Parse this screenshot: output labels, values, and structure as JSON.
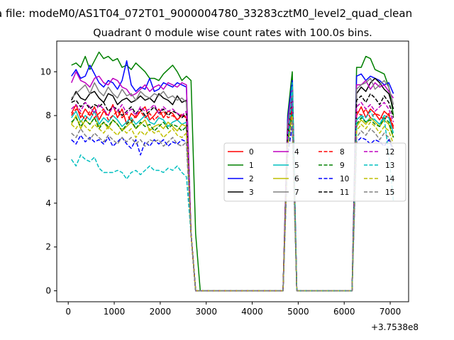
{
  "suptitle": "a file: modeM0/AS1T04_072T01_9000004780_33283cztM0_level2_quad_clean",
  "chart_data": {
    "type": "line",
    "title": "Quadrant 0 module wise count rates with 100.0s bins.",
    "xlabel": "",
    "ylabel": "",
    "x_offset_label": "+3.7538e8",
    "xlim": [
      -250,
      7400
    ],
    "ylim": [
      -0.5,
      11.4
    ],
    "xticks": [
      0,
      1000,
      2000,
      3000,
      4000,
      5000,
      6000,
      7000
    ],
    "yticks": [
      0,
      2,
      4,
      6,
      8,
      10
    ],
    "grid": false,
    "legend_position": "center-right",
    "legend_columns": 4,
    "x": [
      70,
      170,
      270,
      370,
      470,
      570,
      670,
      770,
      870,
      970,
      1070,
      1170,
      1270,
      1370,
      1470,
      1570,
      1670,
      1770,
      1870,
      1970,
      2070,
      2170,
      2270,
      2370,
      2470,
      2570,
      2670,
      2770,
      2870,
      2970,
      3070,
      3170,
      3270,
      3370,
      3470,
      3570,
      3670,
      3770,
      3870,
      3970,
      4070,
      4170,
      4270,
      4370,
      4470,
      4570,
      4670,
      4770,
      4870,
      4970,
      5070,
      5170,
      5270,
      5370,
      5470,
      5570,
      5670,
      5770,
      5870,
      5970,
      6070,
      6170,
      6270,
      6370,
      6470,
      6570,
      6670,
      6770,
      6870,
      6970,
      7070
    ],
    "series": [
      {
        "name": "0",
        "color": "#ff0000",
        "dash": "solid",
        "values": [
          8.1,
          8.5,
          7.9,
          8.3,
          8.0,
          8.4,
          7.8,
          8.2,
          8.0,
          8.5,
          7.9,
          8.3,
          7.6,
          8.1,
          7.9,
          8.2,
          8.4,
          7.8,
          8.0,
          8.3,
          7.9,
          8.2,
          8.1,
          7.8,
          8.0,
          7.9,
          2.6,
          0,
          0,
          0,
          0,
          0,
          0,
          0,
          0,
          0,
          0,
          0,
          0,
          0,
          0,
          0,
          0,
          0,
          0,
          0,
          0,
          7.0,
          8.6,
          0,
          0,
          0,
          0,
          0,
          0,
          0,
          0,
          0,
          0,
          0,
          0,
          0,
          8.0,
          8.4,
          7.9,
          8.3,
          8.1,
          7.8,
          8.2,
          8.0,
          7.4
        ]
      },
      {
        "name": "1",
        "color": "#008000",
        "dash": "solid",
        "values": [
          10.3,
          10.4,
          10.2,
          10.7,
          10.1,
          10.5,
          10.9,
          10.6,
          10.7,
          10.5,
          10.6,
          10.2,
          10.3,
          10.1,
          10.4,
          10.2,
          10.0,
          9.7,
          9.7,
          9.6,
          9.9,
          10.1,
          10.3,
          10.0,
          9.6,
          9.8,
          9.6,
          2.6,
          0,
          0,
          0,
          0,
          0,
          0,
          0,
          0,
          0,
          0,
          0,
          0,
          0,
          0,
          0,
          0,
          0,
          0,
          0,
          8.0,
          10.0,
          0,
          0,
          0,
          0,
          0,
          0,
          0,
          0,
          0,
          0,
          0,
          0,
          0,
          10.2,
          10.2,
          10.7,
          10.6,
          10.1,
          10.0,
          9.9,
          9.3,
          8.0
        ]
      },
      {
        "name": "2",
        "color": "#0000ff",
        "dash": "solid",
        "values": [
          9.8,
          10.1,
          9.7,
          9.8,
          10.3,
          9.9,
          9.5,
          9.3,
          9.6,
          9.5,
          9.2,
          9.6,
          10.5,
          9.4,
          9.1,
          9.3,
          9.2,
          9.7,
          9.1,
          9.2,
          9.5,
          9.4,
          9.3,
          9.5,
          9.4,
          9.3,
          2.6,
          0,
          0,
          0,
          0,
          0,
          0,
          0,
          0,
          0,
          0,
          0,
          0,
          0,
          0,
          0,
          0,
          0,
          0,
          0,
          0,
          7.8,
          9.6,
          0,
          0,
          0,
          0,
          0,
          0,
          0,
          0,
          0,
          0,
          0,
          0,
          0,
          9.8,
          9.9,
          9.6,
          9.8,
          9.7,
          9.6,
          9.4,
          9.5,
          9.0
        ]
      },
      {
        "name": "3",
        "color": "#000000",
        "dash": "solid",
        "values": [
          8.7,
          9.1,
          8.8,
          8.7,
          9.0,
          9.1,
          8.8,
          8.6,
          9.0,
          8.9,
          8.5,
          8.7,
          8.8,
          8.6,
          8.7,
          8.9,
          8.7,
          8.8,
          8.6,
          9.0,
          8.8,
          8.7,
          8.5,
          8.9,
          8.6,
          8.7,
          2.6,
          0,
          0,
          0,
          0,
          0,
          0,
          0,
          0,
          0,
          0,
          0,
          0,
          0,
          0,
          0,
          0,
          0,
          0,
          0,
          0,
          7.4,
          9.0,
          0,
          0,
          0,
          0,
          0,
          0,
          0,
          0,
          0,
          0,
          0,
          0,
          0,
          9.0,
          9.3,
          9.1,
          9.5,
          9.7,
          9.5,
          9.2,
          9.0,
          8.3
        ]
      },
      {
        "name": "4",
        "color": "#bf00bf",
        "dash": "solid",
        "values": [
          9.5,
          10.0,
          9.6,
          9.5,
          9.3,
          9.7,
          9.8,
          9.5,
          9.4,
          9.7,
          9.6,
          9.3,
          9.2,
          8.9,
          9.0,
          9.2,
          9.4,
          9.1,
          9.3,
          9.4,
          9.2,
          9.5,
          9.4,
          9.3,
          9.5,
          9.4,
          2.6,
          0,
          0,
          0,
          0,
          0,
          0,
          0,
          0,
          0,
          0,
          0,
          0,
          0,
          0,
          0,
          0,
          0,
          0,
          0,
          0,
          7.6,
          9.3,
          0,
          0,
          0,
          0,
          0,
          0,
          0,
          0,
          0,
          0,
          0,
          0,
          0,
          9.4,
          9.4,
          9.6,
          9.2,
          9.5,
          9.3,
          9.4,
          9.1,
          8.8
        ]
      },
      {
        "name": "5",
        "color": "#00bfbf",
        "dash": "solid",
        "values": [
          7.9,
          8.2,
          7.7,
          8.0,
          7.8,
          8.2,
          7.6,
          7.9,
          7.7,
          8.0,
          7.8,
          7.5,
          7.7,
          7.9,
          7.6,
          7.8,
          8.0,
          7.7,
          7.6,
          7.9,
          7.8,
          7.5,
          7.7,
          7.8,
          7.6,
          7.7,
          2.6,
          0,
          0,
          0,
          0,
          0,
          0,
          0,
          0,
          0,
          0,
          0,
          0,
          0,
          0,
          0,
          0,
          0,
          0,
          0,
          0,
          7.0,
          8.5,
          0,
          0,
          0,
          0,
          0,
          0,
          0,
          0,
          0,
          0,
          0,
          0,
          0,
          7.8,
          8.0,
          7.7,
          7.9,
          7.8,
          7.6,
          8.0,
          7.9,
          7.2
        ]
      },
      {
        "name": "6",
        "color": "#bfbf00",
        "dash": "solid",
        "values": [
          7.6,
          8.0,
          7.4,
          7.8,
          7.6,
          7.9,
          7.5,
          7.7,
          7.4,
          7.8,
          7.6,
          7.3,
          7.5,
          7.7,
          7.4,
          7.6,
          7.8,
          7.3,
          7.5,
          7.6,
          7.4,
          7.7,
          7.5,
          7.3,
          7.6,
          7.5,
          2.6,
          0,
          0,
          0,
          0,
          0,
          0,
          0,
          0,
          0,
          0,
          0,
          0,
          0,
          0,
          0,
          0,
          0,
          0,
          0,
          0,
          6.8,
          8.2,
          0,
          0,
          0,
          0,
          0,
          0,
          0,
          0,
          0,
          0,
          0,
          0,
          0,
          7.5,
          7.8,
          7.6,
          7.9,
          7.7,
          7.5,
          7.8,
          7.6,
          7.0
        ]
      },
      {
        "name": "7",
        "color": "#808080",
        "dash": "solid",
        "values": [
          8.8,
          9.0,
          9.2,
          9.4,
          9.0,
          9.5,
          9.1,
          8.9,
          9.3,
          9.0,
          8.8,
          9.2,
          8.9,
          9.0,
          8.7,
          9.1,
          8.9,
          8.8,
          9.0,
          8.9,
          9.1,
          8.8,
          8.9,
          8.7,
          8.8,
          8.6,
          2.6,
          0,
          0,
          0,
          0,
          0,
          0,
          0,
          0,
          0,
          0,
          0,
          0,
          0,
          0,
          0,
          0,
          0,
          0,
          0,
          0,
          7.5,
          9.0,
          0,
          0,
          0,
          0,
          0,
          0,
          0,
          0,
          0,
          0,
          0,
          0,
          0,
          9.2,
          9.4,
          9.5,
          9.7,
          9.2,
          9.4,
          9.6,
          9.3,
          8.5
        ]
      },
      {
        "name": "8",
        "color": "#ff0000",
        "dash": "dashed",
        "values": [
          8.0,
          8.3,
          8.1,
          7.8,
          8.2,
          7.9,
          8.1,
          8.3,
          7.8,
          8.0,
          8.2,
          7.9,
          8.1,
          7.7,
          8.0,
          8.2,
          7.9,
          8.1,
          7.8,
          8.0,
          8.2,
          7.9,
          8.0,
          7.8,
          8.1,
          7.9,
          2.6,
          0,
          0,
          0,
          0,
          0,
          0,
          0,
          0,
          0,
          0,
          0,
          0,
          0,
          0,
          0,
          0,
          0,
          0,
          0,
          0,
          6.9,
          8.4,
          0,
          0,
          0,
          0,
          0,
          0,
          0,
          0,
          0,
          0,
          0,
          0,
          0,
          8.2,
          8.0,
          8.3,
          7.9,
          8.1,
          8.0,
          7.8,
          8.1,
          7.5
        ]
      },
      {
        "name": "9",
        "color": "#008000",
        "dash": "dashed",
        "values": [
          7.7,
          7.9,
          7.5,
          7.8,
          7.6,
          7.9,
          7.4,
          7.7,
          7.5,
          7.8,
          7.6,
          7.3,
          7.6,
          7.8,
          7.4,
          7.7,
          7.5,
          7.6,
          7.3,
          7.5,
          7.7,
          7.4,
          7.6,
          7.5,
          7.3,
          7.5,
          2.6,
          0,
          0,
          0,
          0,
          0,
          0,
          0,
          0,
          0,
          0,
          0,
          0,
          0,
          0,
          0,
          0,
          0,
          0,
          0,
          0,
          6.8,
          8.1,
          0,
          0,
          0,
          0,
          0,
          0,
          0,
          0,
          0,
          0,
          0,
          0,
          0,
          7.6,
          7.9,
          7.7,
          7.8,
          7.6,
          7.5,
          7.9,
          7.7,
          7.0
        ]
      },
      {
        "name": "10",
        "color": "#0000ff",
        "dash": "dashed",
        "values": [
          6.9,
          6.7,
          7.1,
          6.8,
          7.0,
          6.8,
          6.9,
          6.7,
          7.0,
          6.6,
          6.8,
          7.0,
          6.7,
          6.5,
          6.9,
          6.2,
          6.8,
          6.6,
          6.9,
          6.7,
          6.9,
          6.6,
          6.8,
          6.7,
          6.9,
          6.8,
          2.6,
          0,
          0,
          0,
          0,
          0,
          0,
          0,
          0,
          0,
          0,
          0,
          0,
          0,
          0,
          0,
          0,
          0,
          0,
          0,
          0,
          6.2,
          7.5,
          0,
          0,
          0,
          0,
          0,
          0,
          0,
          0,
          0,
          0,
          0,
          0,
          0,
          6.8,
          7.0,
          6.9,
          6.7,
          6.9,
          6.8,
          6.6,
          6.9,
          6.4
        ]
      },
      {
        "name": "11",
        "color": "#000000",
        "dash": "dashed",
        "values": [
          8.6,
          8.7,
          8.4,
          8.6,
          8.3,
          8.5,
          8.4,
          8.6,
          8.2,
          8.4,
          8.3,
          8.0,
          8.2,
          8.4,
          8.1,
          8.3,
          8.0,
          8.2,
          8.4,
          8.1,
          8.3,
          8.0,
          8.2,
          8.1,
          7.9,
          8.1,
          2.6,
          0,
          0,
          0,
          0,
          0,
          0,
          0,
          0,
          0,
          0,
          0,
          0,
          0,
          0,
          0,
          0,
          0,
          0,
          0,
          0,
          7.2,
          8.8,
          0,
          0,
          0,
          0,
          0,
          0,
          0,
          0,
          0,
          0,
          0,
          0,
          0,
          8.7,
          8.9,
          8.6,
          9.0,
          8.8,
          8.5,
          8.9,
          8.6,
          7.9
        ]
      },
      {
        "name": "12",
        "color": "#bf00bf",
        "dash": "dashed",
        "values": [
          8.3,
          8.5,
          8.2,
          8.6,
          8.4,
          8.1,
          8.5,
          8.3,
          8.0,
          8.4,
          8.2,
          8.5,
          8.1,
          8.3,
          8.0,
          8.4,
          8.2,
          8.3,
          8.5,
          8.1,
          8.4,
          8.2,
          8.3,
          8.1,
          8.0,
          8.2,
          2.6,
          0,
          0,
          0,
          0,
          0,
          0,
          0,
          0,
          0,
          0,
          0,
          0,
          0,
          0,
          0,
          0,
          0,
          0,
          0,
          0,
          7.3,
          8.7,
          0,
          0,
          0,
          0,
          0,
          0,
          0,
          0,
          0,
          0,
          0,
          0,
          0,
          8.4,
          8.6,
          8.3,
          8.5,
          8.2,
          8.4,
          8.6,
          8.3,
          7.7
        ]
      },
      {
        "name": "13",
        "color": "#00bfbf",
        "dash": "dashed",
        "values": [
          6.0,
          5.7,
          6.2,
          6.0,
          5.9,
          6.1,
          5.6,
          5.4,
          5.4,
          5.4,
          5.5,
          5.4,
          5.1,
          5.4,
          5.5,
          5.3,
          5.5,
          5.7,
          5.5,
          5.5,
          5.4,
          5.6,
          5.5,
          5.7,
          5.4,
          5.2,
          2.6,
          0,
          0,
          0,
          0,
          0,
          0,
          0,
          0,
          0,
          0,
          0,
          0,
          0,
          0,
          0,
          0,
          0,
          0,
          0,
          0,
          6.4,
          9.5,
          0,
          0,
          0,
          0,
          0,
          0,
          0,
          0,
          0,
          0,
          0,
          0,
          0,
          7.8,
          8.0,
          7.9,
          8.2,
          7.8,
          7.6,
          7.9,
          6.2,
          4.1
        ]
      },
      {
        "name": "14",
        "color": "#bfbf00",
        "dash": "dashed",
        "values": [
          7.6,
          7.4,
          7.8,
          7.5,
          7.3,
          7.6,
          7.4,
          7.2,
          7.5,
          7.3,
          7.1,
          7.4,
          7.2,
          7.4,
          7.0,
          7.3,
          7.1,
          7.4,
          7.2,
          7.3,
          7.0,
          7.2,
          7.4,
          7.1,
          7.0,
          7.2,
          2.6,
          0,
          0,
          0,
          0,
          0,
          0,
          0,
          0,
          0,
          0,
          0,
          0,
          0,
          0,
          0,
          0,
          0,
          0,
          0,
          0,
          6.6,
          8.0,
          0,
          0,
          0,
          0,
          0,
          0,
          0,
          0,
          0,
          0,
          0,
          0,
          0,
          7.3,
          7.6,
          7.4,
          7.7,
          7.5,
          7.2,
          7.5,
          7.3,
          6.7
        ]
      },
      {
        "name": "15",
        "color": "#808080",
        "dash": "dashed",
        "values": [
          7.2,
          7.0,
          7.4,
          7.1,
          6.9,
          7.2,
          7.0,
          6.8,
          7.1,
          6.9,
          6.7,
          7.0,
          6.8,
          7.0,
          6.7,
          6.9,
          6.6,
          6.9,
          6.8,
          6.9,
          6.6,
          6.8,
          7.0,
          6.7,
          6.6,
          6.8,
          2.6,
          0,
          0,
          0,
          0,
          0,
          0,
          0,
          0,
          0,
          0,
          0,
          0,
          0,
          0,
          0,
          0,
          0,
          0,
          0,
          0,
          6.4,
          7.8,
          0,
          0,
          0,
          0,
          0,
          0,
          0,
          0,
          0,
          0,
          0,
          0,
          0,
          7.0,
          7.3,
          7.1,
          7.4,
          7.2,
          6.9,
          7.2,
          7.0,
          6.5
        ]
      }
    ]
  }
}
